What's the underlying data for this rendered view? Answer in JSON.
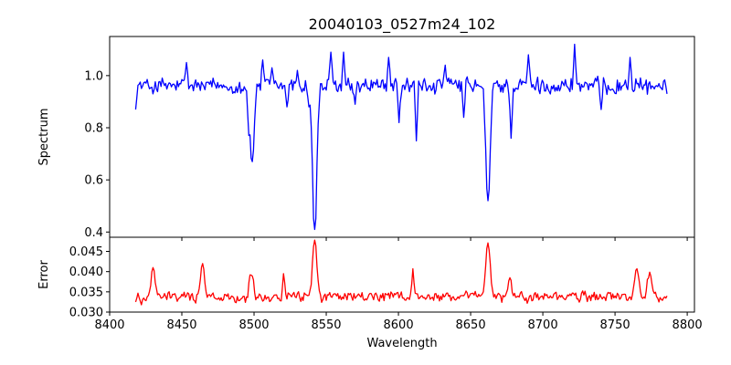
{
  "figure": {
    "title": "20040103_0527m24_102"
  },
  "chart_data": [
    {
      "type": "line",
      "panel": "top",
      "title": "20040103_0527m24_102",
      "xlabel": "",
      "ylabel": "Spectrum",
      "xlim": [
        8400,
        8805
      ],
      "ylim": [
        0.38,
        1.15
      ],
      "xticks": [
        8400,
        8450,
        8500,
        8550,
        8600,
        8650,
        8700,
        8750,
        8800
      ],
      "xtick_labels_shown": false,
      "yticks": [
        0.4,
        0.6,
        0.8,
        1.0
      ],
      "ytick_labels": [
        "0.4",
        "0.6",
        "0.8",
        "1.0"
      ],
      "grid": false,
      "color": "#0000ff",
      "x_range": [
        8418,
        8786
      ],
      "base_level": 0.96,
      "noise_amplitude": 0.055,
      "absorption_features": [
        {
          "center": 8498.5,
          "min": 0.67
        },
        {
          "center": 8542.0,
          "min": 0.41
        },
        {
          "center": 8662.0,
          "min": 0.52
        }
      ],
      "notable_points": [
        {
          "x": 8418,
          "y": 0.87
        },
        {
          "x": 8453,
          "y": 1.05
        },
        {
          "x": 8496,
          "y": 0.77
        },
        {
          "x": 8498.5,
          "y": 0.67
        },
        {
          "x": 8506,
          "y": 1.06
        },
        {
          "x": 8512,
          "y": 1.03
        },
        {
          "x": 8523,
          "y": 0.88
        },
        {
          "x": 8530,
          "y": 1.02
        },
        {
          "x": 8538,
          "y": 0.88
        },
        {
          "x": 8542,
          "y": 0.41
        },
        {
          "x": 8548,
          "y": 0.95
        },
        {
          "x": 8553,
          "y": 1.09
        },
        {
          "x": 8562,
          "y": 1.09
        },
        {
          "x": 8570,
          "y": 0.89
        },
        {
          "x": 8593,
          "y": 1.07
        },
        {
          "x": 8600,
          "y": 0.82
        },
        {
          "x": 8612,
          "y": 0.75
        },
        {
          "x": 8632,
          "y": 1.04
        },
        {
          "x": 8645,
          "y": 0.84
        },
        {
          "x": 8662,
          "y": 0.52
        },
        {
          "x": 8668,
          "y": 0.98
        },
        {
          "x": 8678,
          "y": 0.76
        },
        {
          "x": 8690,
          "y": 1.08
        },
        {
          "x": 8722,
          "y": 1.12
        },
        {
          "x": 8740,
          "y": 0.87
        },
        {
          "x": 8760,
          "y": 1.07
        },
        {
          "x": 8786,
          "y": 0.93
        }
      ]
    },
    {
      "type": "line",
      "panel": "bottom",
      "title": "",
      "xlabel": "Wavelength",
      "ylabel": "Error",
      "xlim": [
        8400,
        8805
      ],
      "ylim": [
        0.03,
        0.0485
      ],
      "xticks": [
        8400,
        8450,
        8500,
        8550,
        8600,
        8650,
        8700,
        8750,
        8800
      ],
      "xtick_labels": [
        "8400",
        "8450",
        "8500",
        "8550",
        "8600",
        "8650",
        "8700",
        "8750",
        "8800"
      ],
      "yticks": [
        0.03,
        0.035,
        0.04,
        0.045
      ],
      "ytick_labels": [
        "0.030",
        "0.035",
        "0.040",
        "0.045"
      ],
      "grid": false,
      "color": "#ff0000",
      "x_range": [
        8418,
        8786
      ],
      "base_level": 0.0338,
      "noise_amplitude": 0.0022,
      "emission_features": [
        {
          "center": 8430,
          "peak": 0.041
        },
        {
          "center": 8464,
          "peak": 0.042
        },
        {
          "center": 8498.5,
          "peak": 0.0395
        },
        {
          "center": 8542.0,
          "peak": 0.0478
        },
        {
          "center": 8662.0,
          "peak": 0.0471
        },
        {
          "center": 8677,
          "peak": 0.0385
        },
        {
          "center": 8765,
          "peak": 0.0407
        },
        {
          "center": 8774,
          "peak": 0.0403
        }
      ],
      "notable_points": [
        {
          "x": 8418,
          "y": 0.0325
        },
        {
          "x": 8422,
          "y": 0.0318
        },
        {
          "x": 8430,
          "y": 0.041
        },
        {
          "x": 8464,
          "y": 0.042
        },
        {
          "x": 8497,
          "y": 0.0392
        },
        {
          "x": 8520,
          "y": 0.0395
        },
        {
          "x": 8542,
          "y": 0.0478
        },
        {
          "x": 8610,
          "y": 0.0407
        },
        {
          "x": 8662,
          "y": 0.0471
        },
        {
          "x": 8677,
          "y": 0.0385
        },
        {
          "x": 8765,
          "y": 0.0407
        },
        {
          "x": 8786,
          "y": 0.034
        }
      ]
    }
  ]
}
